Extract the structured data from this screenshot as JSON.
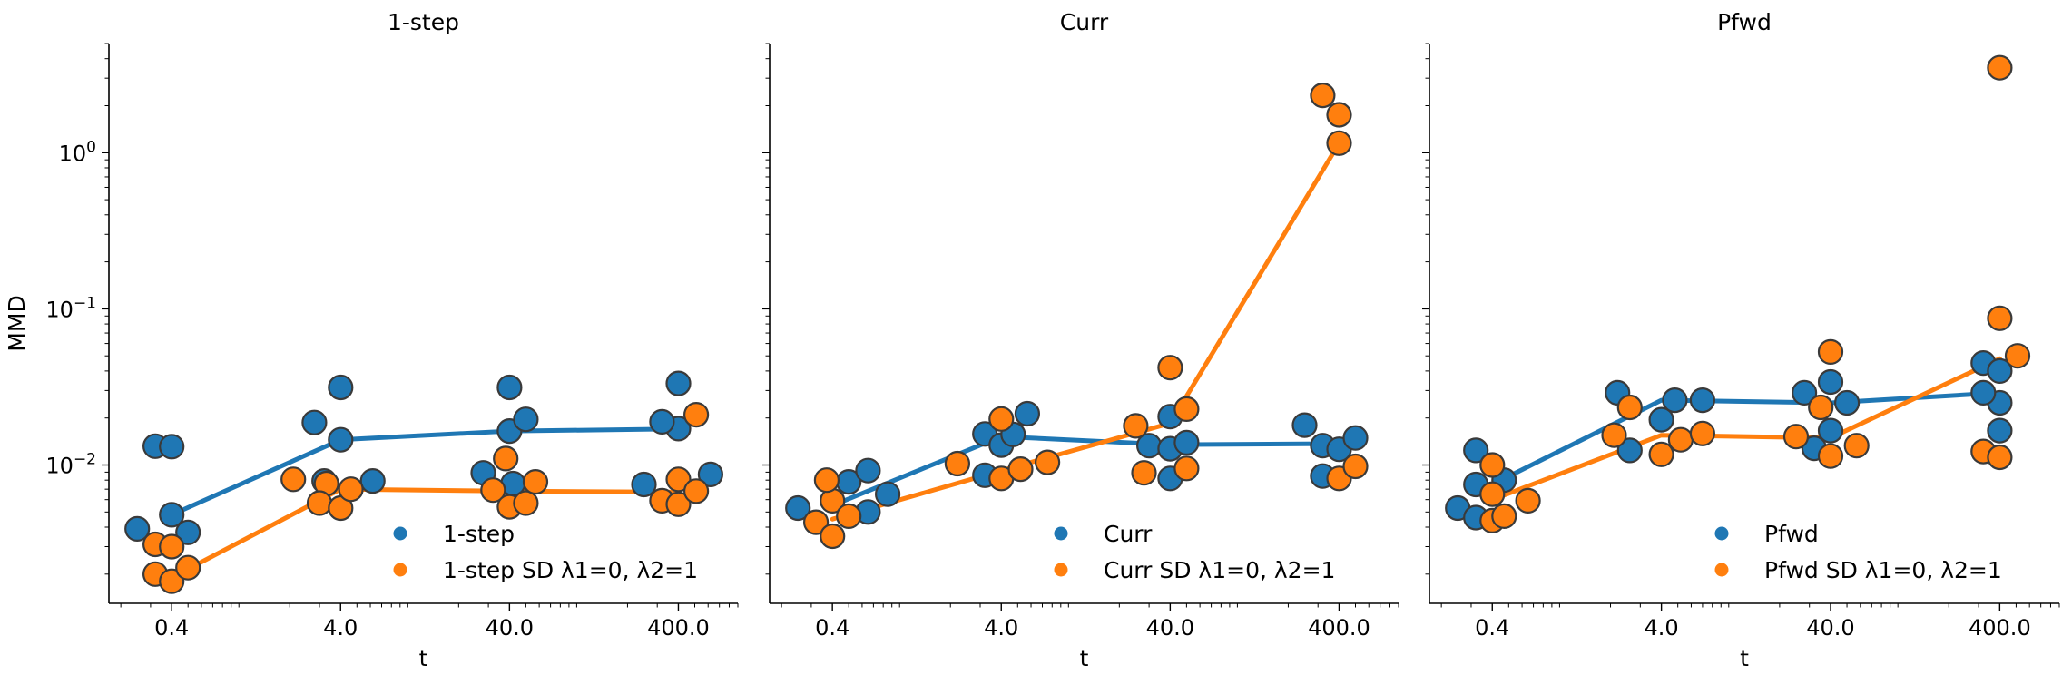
{
  "chart_data": [
    {
      "type": "scatter",
      "title": "1-step",
      "xlabel": "t",
      "ylabel": "MMD",
      "x_scale": "log",
      "y_scale": "log",
      "categories": [
        "0.4",
        "4.0",
        "40.0",
        "400.0"
      ],
      "xlim": [
        0.17,
        900
      ],
      "ylim": [
        0.0013,
        5.0
      ],
      "y_ticks": [
        0.01,
        0.1,
        1
      ],
      "legend_position": "lower-right",
      "colors": {
        "series_1": "#1f77b4",
        "series_2": "#ff7f0e"
      },
      "series": [
        {
          "name": "1-step",
          "color": "#1f77b4",
          "line": [
            [
              0.4,
              0.0048
            ],
            [
              4.0,
              0.0145
            ],
            [
              40.0,
              0.0165
            ],
            [
              400.0,
              0.017
            ]
          ],
          "points": [
            [
              0.25,
              0.0039
            ],
            [
              0.32,
              0.0132
            ],
            [
              0.4,
              0.0131
            ],
            [
              0.4,
              0.0048
            ],
            [
              0.5,
              0.0037
            ],
            [
              2.8,
              0.0187
            ],
            [
              4.0,
              0.0314
            ],
            [
              4.0,
              0.0145
            ],
            [
              3.2,
              0.0079
            ],
            [
              6.2,
              0.0079
            ],
            [
              40.0,
              0.0314
            ],
            [
              40.0,
              0.0165
            ],
            [
              50.0,
              0.0196
            ],
            [
              28.0,
              0.0089
            ],
            [
              42.0,
              0.0076
            ],
            [
              400.0,
              0.0333
            ],
            [
              400.0,
              0.0171
            ],
            [
              320.0,
              0.0189
            ],
            [
              250.0,
              0.0075
            ],
            [
              620.0,
              0.0087
            ]
          ]
        },
        {
          "name": "1-step SD λ1=0, λ2=1",
          "color": "#ff7f0e",
          "line": [
            [
              0.4,
              0.0019
            ],
            [
              4.0,
              0.007
            ],
            [
              40.0,
              0.0068
            ],
            [
              400.0,
              0.0067
            ]
          ],
          "points": [
            [
              0.32,
              0.0031
            ],
            [
              0.4,
              0.003
            ],
            [
              0.32,
              0.002
            ],
            [
              0.4,
              0.0018
            ],
            [
              0.5,
              0.0022
            ],
            [
              2.1,
              0.0081
            ],
            [
              3.3,
              0.0076
            ],
            [
              3.0,
              0.0057
            ],
            [
              4.0,
              0.0053
            ],
            [
              4.6,
              0.007
            ],
            [
              38.0,
              0.011
            ],
            [
              32.0,
              0.0069
            ],
            [
              40.0,
              0.0054
            ],
            [
              50.0,
              0.0057
            ],
            [
              57.0,
              0.0078
            ],
            [
              400.0,
              0.0081
            ],
            [
              320.0,
              0.0059
            ],
            [
              400.0,
              0.0056
            ],
            [
              510.0,
              0.0068
            ],
            [
              510.0,
              0.021
            ]
          ]
        }
      ]
    },
    {
      "type": "scatter",
      "title": "Curr",
      "xlabel": "t",
      "ylabel": "",
      "x_scale": "log",
      "y_scale": "log",
      "categories": [
        "0.4",
        "4.0",
        "40.0",
        "400.0"
      ],
      "xlim": [
        0.17,
        900
      ],
      "ylim": [
        0.0013,
        5.0
      ],
      "y_ticks": [
        0.01,
        0.1,
        1
      ],
      "legend_position": "lower-right",
      "colors": {
        "series_1": "#1f77b4",
        "series_2": "#ff7f0e"
      },
      "series": [
        {
          "name": "Curr",
          "color": "#1f77b4",
          "line": [
            [
              0.4,
              0.0055
            ],
            [
              4.0,
              0.0152
            ],
            [
              40.0,
              0.0135
            ],
            [
              400.0,
              0.0137
            ]
          ],
          "points": [
            [
              0.25,
              0.0053
            ],
            [
              0.5,
              0.0078
            ],
            [
              0.65,
              0.0092
            ],
            [
              0.65,
              0.005
            ],
            [
              0.85,
              0.0065
            ],
            [
              3.2,
              0.0158
            ],
            [
              4.0,
              0.0134
            ],
            [
              4.7,
              0.0157
            ],
            [
              5.7,
              0.0213
            ],
            [
              3.2,
              0.0086
            ],
            [
              40.0,
              0.0204
            ],
            [
              30.0,
              0.0133
            ],
            [
              40.0,
              0.0127
            ],
            [
              50.0,
              0.0139
            ],
            [
              40.0,
              0.0082
            ],
            [
              250.0,
              0.018
            ],
            [
              320.0,
              0.0133
            ],
            [
              400.0,
              0.0126
            ],
            [
              500.0,
              0.0149
            ],
            [
              320.0,
              0.0085
            ]
          ]
        },
        {
          "name": "Curr SD λ1=0, λ2=1",
          "color": "#ff7f0e",
          "line": [
            [
              0.4,
              0.0045
            ],
            [
              4.0,
              0.0092
            ],
            [
              40.0,
              0.0185
            ],
            [
              400.0,
              1.15
            ]
          ],
          "points": [
            [
              0.32,
              0.0043
            ],
            [
              0.4,
              0.0035
            ],
            [
              0.4,
              0.0059
            ],
            [
              0.5,
              0.0047
            ],
            [
              0.37,
              0.008
            ],
            [
              2.2,
              0.0102
            ],
            [
              4.0,
              0.0197
            ],
            [
              4.0,
              0.0082
            ],
            [
              5.2,
              0.0094
            ],
            [
              7.5,
              0.0104
            ],
            [
              40.0,
              0.042
            ],
            [
              25.0,
              0.0178
            ],
            [
              28.0,
              0.0089
            ],
            [
              50.0,
              0.0228
            ],
            [
              50.0,
              0.0095
            ],
            [
              320.0,
              2.33
            ],
            [
              400.0,
              1.75
            ],
            [
              400.0,
              1.15
            ],
            [
              400.0,
              0.0082
            ],
            [
              500.0,
              0.0098
            ]
          ]
        }
      ]
    },
    {
      "type": "scatter",
      "title": "Pfwd",
      "xlabel": "t",
      "ylabel": "",
      "x_scale": "log",
      "y_scale": "log",
      "categories": [
        "0.4",
        "4.0",
        "40.0",
        "400.0"
      ],
      "xlim": [
        0.17,
        900
      ],
      "ylim": [
        0.0013,
        5.0
      ],
      "y_ticks": [
        0.01,
        0.1,
        1
      ],
      "legend_position": "lower-right",
      "colors": {
        "series_1": "#1f77b4",
        "series_2": "#ff7f0e"
      },
      "series": [
        {
          "name": "Pfwd",
          "color": "#1f77b4",
          "line": [
            [
              0.4,
              0.0075
            ],
            [
              4.0,
              0.026
            ],
            [
              40.0,
              0.025
            ],
            [
              400.0,
              0.029
            ]
          ],
          "points": [
            [
              0.25,
              0.0053
            ],
            [
              0.32,
              0.0124
            ],
            [
              0.32,
              0.0075
            ],
            [
              0.32,
              0.0046
            ],
            [
              0.47,
              0.008
            ],
            [
              2.2,
              0.029
            ],
            [
              4.0,
              0.0195
            ],
            [
              4.8,
              0.026
            ],
            [
              7.0,
              0.026
            ],
            [
              2.6,
              0.0124
            ],
            [
              28.0,
              0.029
            ],
            [
              40.0,
              0.034
            ],
            [
              50.0,
              0.025
            ],
            [
              40.0,
              0.0166
            ],
            [
              32.0,
              0.0128
            ],
            [
              320.0,
              0.045
            ],
            [
              400.0,
              0.04
            ],
            [
              400.0,
              0.025
            ],
            [
              320.0,
              0.029
            ],
            [
              400.0,
              0.0166
            ]
          ]
        },
        {
          "name": "Pfwd SD λ1=0, λ2=1",
          "color": "#ff7f0e",
          "line": [
            [
              0.4,
              0.006
            ],
            [
              4.0,
              0.0155
            ],
            [
              40.0,
              0.0149
            ],
            [
              400.0,
              0.048
            ]
          ],
          "points": [
            [
              0.4,
              0.01
            ],
            [
              0.4,
              0.0065
            ],
            [
              0.4,
              0.0044
            ],
            [
              0.47,
              0.0047
            ],
            [
              0.65,
              0.0059
            ],
            [
              2.1,
              0.0155
            ],
            [
              2.6,
              0.0234
            ],
            [
              4.0,
              0.0117
            ],
            [
              5.2,
              0.0145
            ],
            [
              7.0,
              0.0159
            ],
            [
              40.0,
              0.053
            ],
            [
              35.0,
              0.0234
            ],
            [
              40.0,
              0.0114
            ],
            [
              25.0,
              0.0152
            ],
            [
              57.0,
              0.0133
            ],
            [
              400.0,
              3.5
            ],
            [
              400.0,
              0.087
            ],
            [
              510.0,
              0.05
            ],
            [
              320.0,
              0.0122
            ],
            [
              400.0,
              0.0112
            ]
          ]
        }
      ]
    }
  ]
}
